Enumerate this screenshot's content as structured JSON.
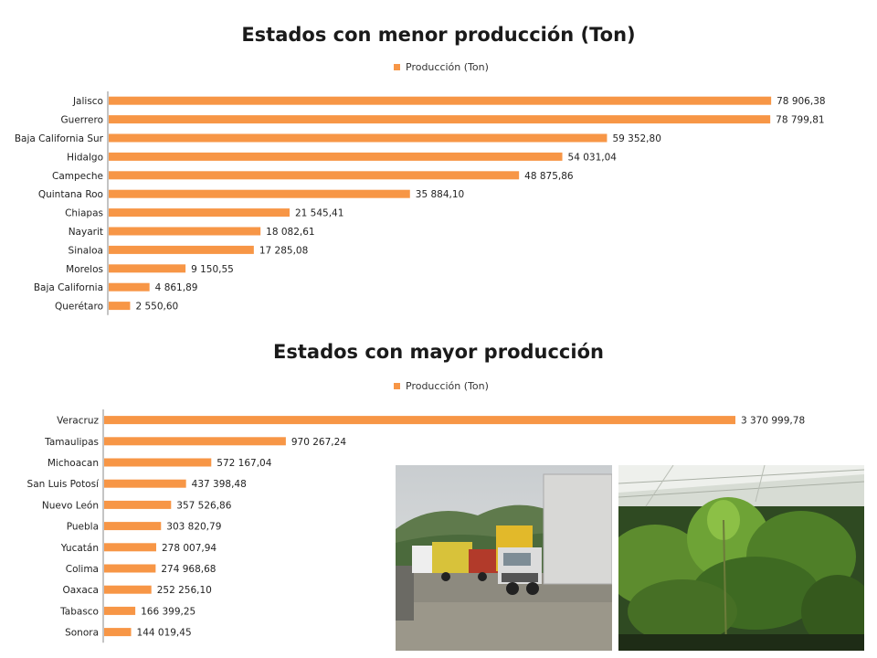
{
  "colors": {
    "bar": "#F79646",
    "axis": "#888888"
  },
  "chart_data": [
    {
      "type": "bar",
      "orientation": "horizontal",
      "title": "Estados con menor producción (Ton)",
      "legend": {
        "label": "Producción (Ton)",
        "placement": "top"
      },
      "series": [
        {
          "name": "Producción (Ton)",
          "values": [
            78906.38,
            78799.81,
            59352.8,
            54031.04,
            48875.86,
            35884.1,
            21545.41,
            18082.61,
            17285.08,
            9150.55,
            4861.89,
            2550.6
          ]
        }
      ],
      "categories": [
        "Jalisco",
        "Guerrero",
        "Baja California Sur",
        "Hidalgo",
        "Campeche",
        "Quintana Roo",
        "Chiapas",
        "Nayarit",
        "Sinaloa",
        "Morelos",
        "Baja California",
        "Querétaro"
      ],
      "data_labels": [
        "78 906,38",
        "78 799,81",
        "59 352,80",
        "54 031,04",
        "48 875,86",
        "35 884,10",
        "21 545,41",
        "18 082,61",
        "17 285,08",
        "9 150,55",
        "4 861,89",
        "2 550,60"
      ],
      "xlim": [
        0,
        79000
      ],
      "grid": false
    },
    {
      "type": "bar",
      "orientation": "horizontal",
      "title": "Estados con mayor producción",
      "legend": {
        "label": "Producción (Ton)",
        "placement": "top"
      },
      "series": [
        {
          "name": "Producción (Ton)",
          "values": [
            3370999.78,
            970267.24,
            572167.04,
            437398.48,
            357526.86,
            303820.79,
            278007.94,
            274968.68,
            252256.1,
            166399.25,
            144019.45
          ]
        }
      ],
      "categories": [
        "Veracruz",
        "Tamaulipas",
        "Michoacan",
        "San Luis Potosí",
        "Nuevo León",
        "Puebla",
        "Yucatán",
        "Colima",
        "Oaxaca",
        "Tabasco",
        "Sonora"
      ],
      "data_labels": [
        "3 370 999,78",
        "970 267,24",
        "572 167,04",
        "437 398,48",
        "357 526,86",
        "303 820,79",
        "278 007,94",
        "274 968,68",
        "252 256,10",
        "166 399,25",
        "144 019,45"
      ],
      "xlim": [
        0,
        3371000
      ],
      "grid": false
    }
  ],
  "photos": [
    {
      "name": "trucks-photo"
    },
    {
      "name": "greenhouse-plants-photo"
    }
  ]
}
